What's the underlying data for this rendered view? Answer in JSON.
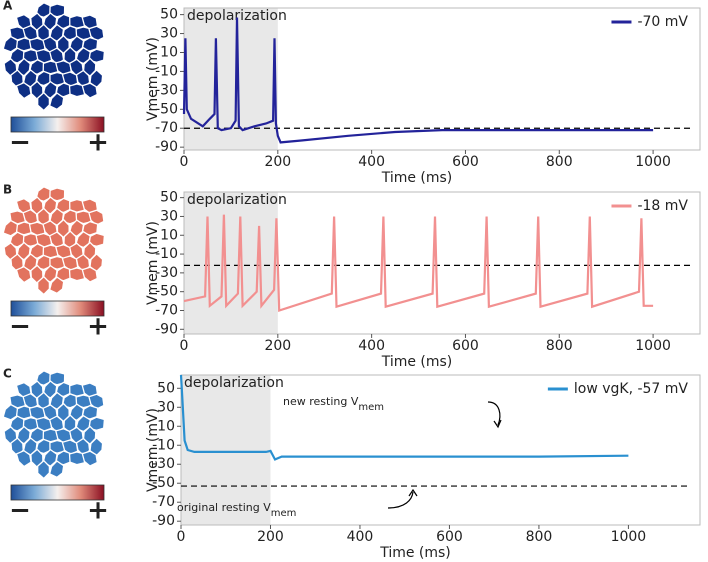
{
  "chart_data": [
    {
      "type": "line",
      "panel": "A",
      "x_label": "Time (ms)",
      "y_label": "Vmem (mV)",
      "xlim": [
        0,
        1100
      ],
      "xticks": [
        0,
        200,
        400,
        600,
        800,
        1000
      ],
      "ylim": [
        -93,
        57
      ],
      "yticks": [
        50,
        30,
        10,
        -10,
        -30,
        -50,
        -70,
        -90
      ],
      "shade_label": "depolarization",
      "shaded_x": [
        0,
        200
      ],
      "reference_line": -70,
      "legend": "upper right",
      "grid": false,
      "tissue_color": "#0e2f84",
      "colorbar_labels": [
        "−",
        "+"
      ],
      "x": [
        0,
        3,
        6,
        15,
        40,
        55,
        65,
        68,
        72,
        80,
        100,
        110,
        113,
        117,
        125,
        150,
        175,
        190,
        193,
        196,
        200,
        206,
        250,
        350,
        450,
        550,
        1000
      ],
      "series": [
        {
          "name": "-70 mV",
          "color": "#23239a",
          "values": [
            -55,
            25,
            -50,
            -60,
            -68,
            -60,
            -55,
            25,
            -70,
            -72,
            -70,
            -62,
            47,
            -68,
            -72,
            -68,
            -65,
            -62,
            25,
            -65,
            -78,
            -85,
            -83,
            -78,
            -74,
            -72,
            -72
          ]
        }
      ]
    },
    {
      "type": "line",
      "panel": "B",
      "x_label": "Time (ms)",
      "y_label": "Vmem (mV)",
      "xlim": [
        0,
        1100
      ],
      "xticks": [
        0,
        200,
        400,
        600,
        800,
        1000
      ],
      "ylim": [
        -95,
        56
      ],
      "yticks": [
        50,
        30,
        10,
        -10,
        -30,
        -50,
        -70,
        -90
      ],
      "shade_label": "depolarization",
      "shaded_x": [
        0,
        200
      ],
      "reference_line": -22,
      "legend": "upper right",
      "grid": false,
      "tissue_color": "#e2735e",
      "colorbar_labels": [
        "−",
        "+"
      ],
      "x": [
        0,
        45,
        50,
        55,
        80,
        85,
        90,
        115,
        120,
        125,
        155,
        160,
        165,
        192,
        197,
        203,
        315,
        320,
        325,
        420,
        425,
        430,
        530,
        535,
        540,
        640,
        645,
        650,
        750,
        755,
        760,
        860,
        865,
        870,
        970,
        975,
        980,
        1000
      ],
      "series": [
        {
          "name": "-18 mV",
          "color": "#f29090",
          "values": [
            -60,
            -55,
            30,
            -65,
            -55,
            32,
            -65,
            -52,
            30,
            -65,
            -50,
            20,
            -65,
            -48,
            28,
            -70,
            -52,
            30,
            -66,
            -52,
            30,
            -66,
            -52,
            30,
            -66,
            -52,
            30,
            -66,
            -52,
            30,
            -66,
            -52,
            30,
            -66,
            -50,
            28,
            -65,
            -65
          ]
        }
      ]
    },
    {
      "type": "line",
      "panel": "C",
      "x_label": "Time (ms)",
      "y_label": "Vmem (mV)",
      "xlim": [
        0,
        1160
      ],
      "xticks": [
        0,
        200,
        400,
        600,
        800,
        1000
      ],
      "ylim": [
        -94,
        64
      ],
      "yticks": [
        50,
        30,
        10,
        -10,
        -30,
        -50,
        -70,
        -90
      ],
      "shade_label": "depolarization",
      "shaded_x": [
        0,
        200
      ],
      "reference_line": -53,
      "legend": "upper right",
      "grid": false,
      "tissue_color": "#3b7ec2",
      "colorbar_labels": [
        "−",
        "+"
      ],
      "annotations": [
        {
          "text": "new resting V",
          "sub": "mem"
        },
        {
          "text": "original resting V",
          "sub": "mem"
        }
      ],
      "x": [
        0,
        3,
        8,
        15,
        30,
        100,
        190,
        200,
        210,
        215,
        225,
        400,
        600,
        800,
        1000
      ],
      "series": [
        {
          "name": "low vgK, -57 mV",
          "color": "#2a90d0",
          "values": [
            64,
            40,
            -5,
            -15,
            -17,
            -17,
            -17,
            -16,
            -25,
            -24,
            -22,
            -22,
            -22,
            -22,
            -21
          ]
        }
      ]
    }
  ]
}
